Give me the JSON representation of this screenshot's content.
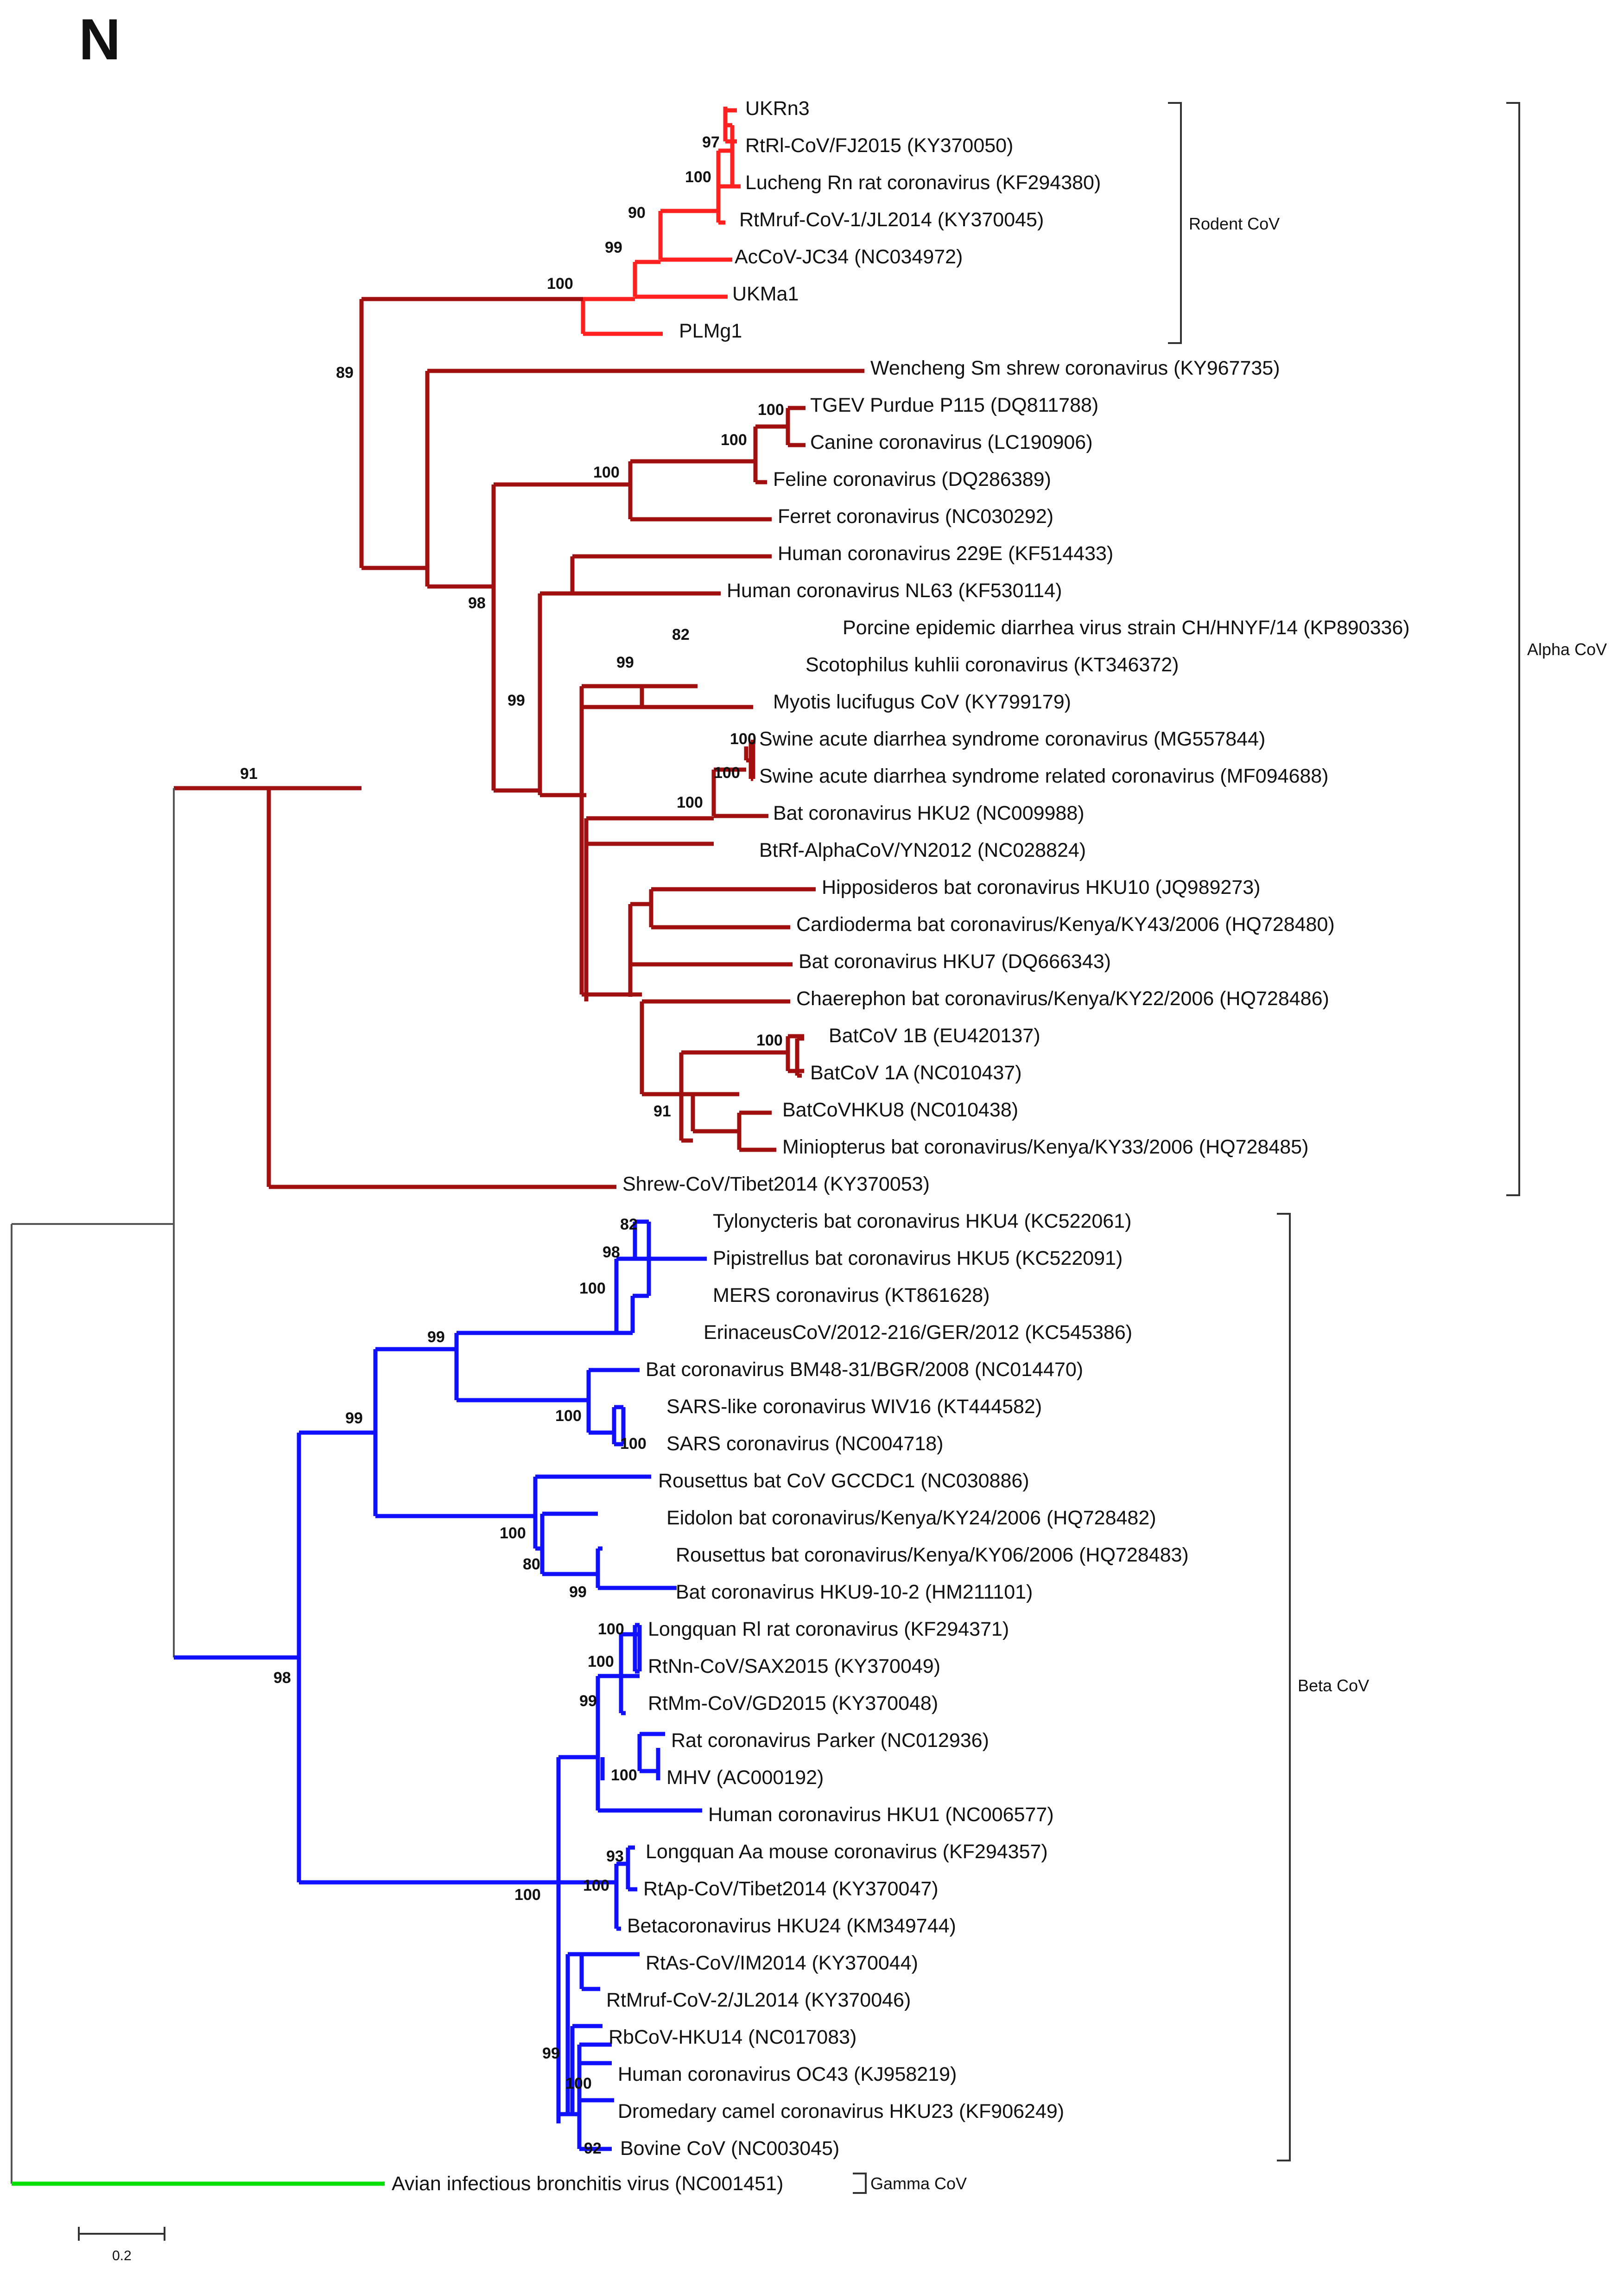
{
  "figure": {
    "panel_label": "N",
    "scale_label": "0.2",
    "colors": {
      "rodent": "#ff2020",
      "alpha": "#a01010",
      "beta": "#1010ff",
      "gamma": "#00e000",
      "root": "#555555"
    }
  },
  "leaves": [
    "UKRn3",
    "RtRl-CoV/FJ2015 (KY370050)",
    "Lucheng Rn rat coronavirus (KF294380)",
    "RtMruf-CoV-1/JL2014 (KY370045)",
    "AcCoV-JC34 (NC034972)",
    "UKMa1",
    "PLMg1",
    "Wencheng Sm shrew coronavirus (KY967735)",
    "TGEV Purdue P115 (DQ811788)",
    "Canine coronavirus (LC190906)",
    "Feline coronavirus (DQ286389)",
    "Ferret coronavirus (NC030292)",
    "Human coronavirus 229E (KF514433)",
    "Human coronavirus NL63 (KF530114)",
    "Porcine epidemic diarrhea virus strain CH/HNYF/14 (KP890336)",
    "Scotophilus kuhlii coronavirus (KT346372)",
    "Myotis lucifugus CoV (KY799179)",
    "Swine acute diarrhea syndrome coronavirus (MG557844)",
    "Swine acute diarrhea syndrome related coronavirus (MF094688)",
    "Bat coronavirus HKU2 (NC009988)",
    "BtRf-AlphaCoV/YN2012 (NC028824)",
    "Hipposideros bat coronavirus HKU10 (JQ989273)",
    "Cardioderma bat coronavirus/Kenya/KY43/2006 (HQ728480)",
    "Bat coronavirus HKU7 (DQ666343)",
    "Chaerephon bat coronavirus/Kenya/KY22/2006 (HQ728486)",
    "BatCoV 1B (EU420137)",
    "BatCoV 1A (NC010437)",
    "BatCoVHKU8 (NC010438)",
    "Miniopterus bat coronavirus/Kenya/KY33/2006 (HQ728485)",
    "Shrew-CoV/Tibet2014 (KY370053)",
    "Tylonycteris bat coronavirus HKU4 (KC522061)",
    "Pipistrellus bat coronavirus HKU5 (KC522091)",
    "MERS coronavirus (KT861628)",
    "ErinaceusCoV/2012-216/GER/2012 (KC545386)",
    "Bat coronavirus BM48-31/BGR/2008 (NC014470)",
    "SARS-like coronavirus WIV16 (KT444582)",
    "SARS coronavirus (NC004718)",
    "Rousettus bat CoV GCCDC1 (NC030886)",
    "Eidolon bat coronavirus/Kenya/KY24/2006 (HQ728482)",
    "Rousettus bat coronavirus/Kenya/KY06/2006 (HQ728483)",
    "Bat coronavirus HKU9-10-2 (HM211101)",
    "Longquan Rl rat coronavirus (KF294371)",
    "RtNn-CoV/SAX2015 (KY370049)",
    "RtMm-CoV/GD2015 (KY370048)",
    "Rat coronavirus Parker (NC012936)",
    "MHV (AC000192)",
    "Human coronavirus HKU1 (NC006577)",
    "Longquan Aa mouse coronavirus (KF294357)",
    "RtAp-CoV/Tibet2014 (KY370047)",
    "Betacoronavirus HKU24 (KM349744)",
    "RtAs-CoV/IM2014 (KY370044)",
    "RtMruf-CoV-2/JL2014 (KY370046)",
    "RbCoV-HKU14 (NC017083)",
    "Human coronavirus OC43 (KJ958219)",
    "Dromedary camel coronavirus HKU23 (KF906249)",
    "Bovine CoV (NC003045)",
    "Avian infectious bronchitis virus (NC001451)"
  ],
  "clades": [
    {
      "label": "Rodent CoV"
    },
    {
      "label": "Alpha CoV"
    },
    {
      "label": "Beta CoV"
    },
    {
      "label": "Gamma CoV"
    }
  ],
  "bootstrap": [
    "97",
    "100",
    "90",
    "99",
    "100",
    "89",
    "100",
    "100",
    "100",
    "98",
    "82",
    "99",
    "99",
    "100",
    "100",
    "100",
    "91",
    "100",
    "91",
    "82",
    "98",
    "100",
    "99",
    "100",
    "100",
    "99",
    "100",
    "80",
    "99",
    "100",
    "100",
    "99",
    "100",
    "93",
    "100",
    "99",
    "100",
    "92",
    "100",
    "98"
  ]
}
